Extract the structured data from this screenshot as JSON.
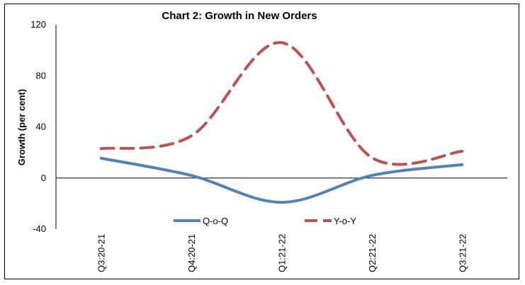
{
  "chart_data": {
    "type": "line",
    "title": "Chart 2: Growth in New Orders",
    "xlabel": "",
    "ylabel": "Growth (per cent)",
    "categories": [
      "Q3:20-21",
      "Q4:20-21",
      "Q1:21-22",
      "Q2:21-22",
      "Q3:21-22"
    ],
    "ylim": [
      -40,
      120
    ],
    "yticks": [
      -40,
      0,
      40,
      80,
      120
    ],
    "grid": false,
    "smooth": true,
    "legend_position": "bottom-inside",
    "series": [
      {
        "name": "Q-o-Q",
        "values": [
          15.5,
          2,
          -19,
          2,
          10.5
        ],
        "color": "#4f81bd",
        "style": "solid"
      },
      {
        "name": "Y-o-Y",
        "values": [
          23,
          33,
          106,
          16,
          21
        ],
        "color": "#c0504d",
        "style": "dashed"
      }
    ]
  }
}
